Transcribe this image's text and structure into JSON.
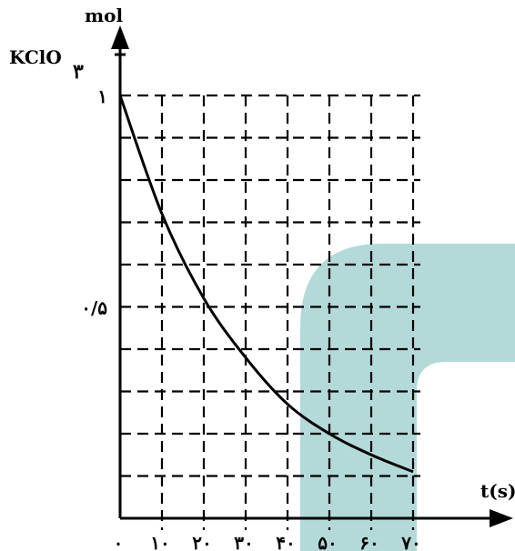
{
  "chart_data": {
    "type": "line",
    "title": "",
    "ylabel_unit": "mol",
    "ylabel_species": "KClO",
    "ylabel_subscript": "۳",
    "xlabel": "t(s)",
    "ylim": [
      0,
      1
    ],
    "xlim": [
      0,
      70
    ],
    "grid": true,
    "x_ticks": [
      0,
      10,
      20,
      30,
      40,
      50,
      60,
      70
    ],
    "x_tick_labels": [
      "۰",
      "۱۰",
      "۲۰",
      "۳۰",
      "۴۰",
      "۵۰",
      "۶۰",
      "۷۰"
    ],
    "y_tick_values": [
      0.5,
      1
    ],
    "y_tick_labels": [
      "۰/۵",
      "۱"
    ],
    "series": [
      {
        "x": [
          0,
          10,
          20,
          30,
          40,
          50,
          60,
          70
        ],
        "y": [
          1.0,
          0.72,
          0.52,
          0.38,
          0.27,
          0.2,
          0.15,
          0.11
        ]
      }
    ],
    "color_line": "#000000",
    "color_decoration": "#b3d9d9"
  }
}
